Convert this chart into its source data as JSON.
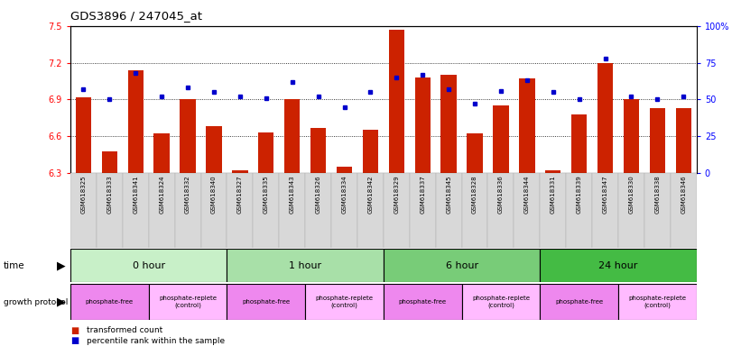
{
  "title": "GDS3896 / 247045_at",
  "samples": [
    "GSM618325",
    "GSM618333",
    "GSM618341",
    "GSM618324",
    "GSM618332",
    "GSM618340",
    "GSM618327",
    "GSM618335",
    "GSM618343",
    "GSM618326",
    "GSM618334",
    "GSM618342",
    "GSM618329",
    "GSM618337",
    "GSM618345",
    "GSM618328",
    "GSM618336",
    "GSM618344",
    "GSM618331",
    "GSM618339",
    "GSM618347",
    "GSM618330",
    "GSM618338",
    "GSM618346"
  ],
  "transformed_count": [
    6.92,
    6.48,
    7.14,
    6.62,
    6.9,
    6.68,
    6.32,
    6.63,
    6.9,
    6.67,
    6.35,
    6.65,
    7.47,
    7.08,
    7.1,
    6.62,
    6.85,
    7.07,
    6.32,
    6.78,
    7.2,
    6.9,
    6.83,
    6.83
  ],
  "percentile_rank": [
    57,
    50,
    68,
    52,
    58,
    55,
    52,
    51,
    62,
    52,
    45,
    55,
    65,
    67,
    57,
    47,
    56,
    63,
    55,
    50,
    78,
    52,
    50,
    52
  ],
  "time_groups": [
    {
      "label": "0 hour",
      "start": 0,
      "end": 6,
      "color": "#c8f0c8"
    },
    {
      "label": "1 hour",
      "start": 6,
      "end": 12,
      "color": "#a8e0a8"
    },
    {
      "label": "6 hour",
      "start": 12,
      "end": 18,
      "color": "#78cc78"
    },
    {
      "label": "24 hour",
      "start": 18,
      "end": 24,
      "color": "#44bb44"
    }
  ],
  "protocol_groups": [
    {
      "label": "phosphate-free",
      "start": 0,
      "end": 3,
      "color": "#ee88ee"
    },
    {
      "label": "phosphate-replete\n(control)",
      "start": 3,
      "end": 6,
      "color": "#ffbbff"
    },
    {
      "label": "phosphate-free",
      "start": 6,
      "end": 9,
      "color": "#ee88ee"
    },
    {
      "label": "phosphate-replete\n(control)",
      "start": 9,
      "end": 12,
      "color": "#ffbbff"
    },
    {
      "label": "phosphate-free",
      "start": 12,
      "end": 15,
      "color": "#ee88ee"
    },
    {
      "label": "phosphate-replete\n(control)",
      "start": 15,
      "end": 18,
      "color": "#ffbbff"
    },
    {
      "label": "phosphate-free",
      "start": 18,
      "end": 21,
      "color": "#ee88ee"
    },
    {
      "label": "phosphate-replete\n(control)",
      "start": 21,
      "end": 24,
      "color": "#ffbbff"
    }
  ],
  "ylim": [
    6.3,
    7.5
  ],
  "yticks": [
    6.3,
    6.6,
    6.9,
    7.2,
    7.5
  ],
  "bar_color": "#cc2200",
  "dot_color": "#0000cc",
  "bar_width": 0.6,
  "tick_label_gray": "#dddddd"
}
